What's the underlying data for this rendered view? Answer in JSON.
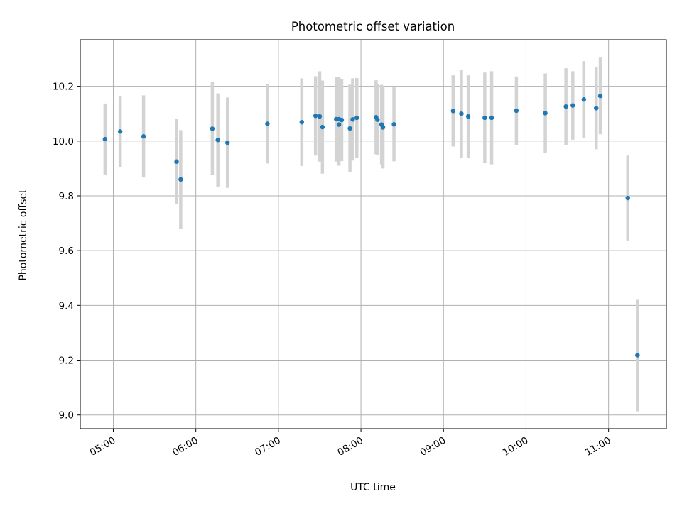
{
  "chart_data": {
    "type": "scatter",
    "title": "Photometric offset variation",
    "xlabel": "UTC time",
    "ylabel": "Photometric offset",
    "grid": true,
    "xlim": [
      "04:36",
      "11:42"
    ],
    "ylim": [
      8.95,
      10.37
    ],
    "xticks": [
      "05:00",
      "06:00",
      "07:00",
      "08:00",
      "09:00",
      "10:00",
      "11:00"
    ],
    "yticks": [
      9.0,
      9.2,
      9.4,
      9.6,
      9.8,
      10.0,
      10.2
    ],
    "ytick_labels": [
      "9.0",
      "9.2",
      "9.4",
      "9.6",
      "9.8",
      "10.0",
      "10.2"
    ],
    "colors": {
      "marker": "#1f77b4",
      "errorbar": "#d3d3d3",
      "grid": "#b0b0b0"
    },
    "points": [
      {
        "t": "04:54",
        "y": 10.007,
        "err": 0.13
      },
      {
        "t": "05:05",
        "y": 10.035,
        "err": 0.13
      },
      {
        "t": "05:22",
        "y": 10.017,
        "err": 0.15
      },
      {
        "t": "05:46",
        "y": 9.925,
        "err": 0.155
      },
      {
        "t": "05:49",
        "y": 9.86,
        "err": 0.18
      },
      {
        "t": "06:12",
        "y": 10.045,
        "err": 0.17
      },
      {
        "t": "06:16",
        "y": 10.004,
        "err": 0.17
      },
      {
        "t": "06:23",
        "y": 9.994,
        "err": 0.165
      },
      {
        "t": "06:52",
        "y": 10.063,
        "err": 0.145
      },
      {
        "t": "07:17",
        "y": 10.069,
        "err": 0.16
      },
      {
        "t": "07:27",
        "y": 10.092,
        "err": 0.145
      },
      {
        "t": "07:30",
        "y": 10.09,
        "err": 0.165
      },
      {
        "t": "07:32",
        "y": 10.051,
        "err": 0.17
      },
      {
        "t": "07:42",
        "y": 10.08,
        "err": 0.155
      },
      {
        "t": "07:44",
        "y": 10.06,
        "err": 0.15
      },
      {
        "t": "07:44",
        "y": 10.08,
        "err": 0.155
      },
      {
        "t": "07:46",
        "y": 10.077,
        "err": 0.15
      },
      {
        "t": "07:52",
        "y": 10.046,
        "err": 0.16
      },
      {
        "t": "07:54",
        "y": 10.079,
        "err": 0.15
      },
      {
        "t": "07:57",
        "y": 10.085,
        "err": 0.145
      },
      {
        "t": "08:11",
        "y": 10.087,
        "err": 0.135
      },
      {
        "t": "08:12",
        "y": 10.078,
        "err": 0.13
      },
      {
        "t": "08:15",
        "y": 10.06,
        "err": 0.145
      },
      {
        "t": "08:16",
        "y": 10.05,
        "err": 0.15
      },
      {
        "t": "08:24",
        "y": 10.061,
        "err": 0.135
      },
      {
        "t": "09:07",
        "y": 10.11,
        "err": 0.13
      },
      {
        "t": "09:13",
        "y": 10.1,
        "err": 0.16
      },
      {
        "t": "09:18",
        "y": 10.09,
        "err": 0.15
      },
      {
        "t": "09:30",
        "y": 10.085,
        "err": 0.165
      },
      {
        "t": "09:35",
        "y": 10.085,
        "err": 0.17
      },
      {
        "t": "09:53",
        "y": 10.111,
        "err": 0.125
      },
      {
        "t": "10:14",
        "y": 10.102,
        "err": 0.145
      },
      {
        "t": "10:29",
        "y": 10.126,
        "err": 0.14
      },
      {
        "t": "10:34",
        "y": 10.13,
        "err": 0.125
      },
      {
        "t": "10:42",
        "y": 10.152,
        "err": 0.14
      },
      {
        "t": "10:51",
        "y": 10.12,
        "err": 0.15
      },
      {
        "t": "10:54",
        "y": 10.165,
        "err": 0.14
      },
      {
        "t": "11:14",
        "y": 9.792,
        "err": 0.155
      },
      {
        "t": "11:21",
        "y": 9.218,
        "err": 0.205
      }
    ]
  }
}
